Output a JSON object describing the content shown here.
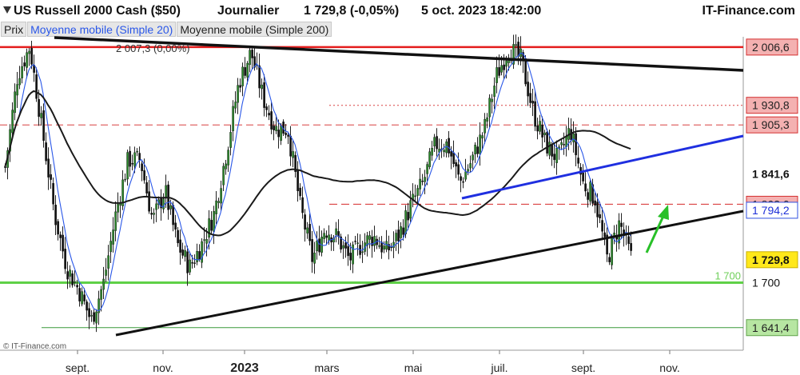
{
  "header": {
    "title": "US Russell 2000 Cash ($50)",
    "period": "Journalier",
    "quote": "1 729,8 (-0,05%)",
    "datetime": "5 oct. 2023 18:42:00",
    "brand": "IT-Finance.com"
  },
  "legend": {
    "price": "Prix",
    "ma20": "Moyenne mobile (Simple 20)",
    "ma200": "Moyenne mobile (Simple 200)"
  },
  "colors": {
    "ma20": "#2a57e8",
    "ma200": "#1a1a1a",
    "resistance_red": "#e41d1d",
    "dashed_red": "#d94040",
    "support_green": "#5fd047",
    "blue_trend": "#1f2fe0",
    "arrow_green": "#28c028"
  },
  "watermark": "© IT-Finance.com",
  "chart_data": {
    "type": "candlestick",
    "title": "US Russell 2000 Cash ($50)",
    "x_ticks": [
      "sept.",
      "nov.",
      "2023",
      "mars",
      "mai",
      "juil.",
      "sept.",
      "nov."
    ],
    "y_ticks": [
      "1 700"
    ],
    "ylim": [
      1612,
      2020
    ],
    "series": [
      {
        "name": "Prix",
        "values": [
          1850,
          1970,
          2007.3,
          1900,
          1790,
          1720,
          1690,
          1650,
          1700,
          1790,
          1860,
          1860,
          1780,
          1820,
          1750,
          1720,
          1750,
          1790,
          1870,
          1960,
          2000,
          1940,
          1900,
          1900,
          1800,
          1730,
          1770,
          1760,
          1730,
          1750,
          1760,
          1740,
          1760,
          1800,
          1830,
          1880,
          1880,
          1830,
          1860,
          1900,
          1970,
          2005,
          1990,
          1920,
          1880,
          1860,
          1900,
          1830,
          1810,
          1730,
          1778,
          1730
        ]
      },
      {
        "name": "Moyenne mobile (Simple 20)"
      },
      {
        "name": "Moyenne mobile (Simple 200)"
      }
    ],
    "price_labels": [
      {
        "text": "2 006,6",
        "value": 2006.6,
        "kind": "red"
      },
      {
        "text": "1 930,8",
        "value": 1930.8,
        "kind": "red"
      },
      {
        "text": "1 905,3",
        "value": 1905.3,
        "kind": "red"
      },
      {
        "text": "1 841,6",
        "value": 1841.6,
        "kind": "white"
      },
      {
        "text": "1 802,0",
        "value": 1802.0,
        "kind": "red"
      },
      {
        "text": "1 794,2",
        "value": 1794.2,
        "kind": "blue"
      },
      {
        "text": "1 729,8",
        "value": 1729.8,
        "kind": "yellow"
      },
      {
        "text": "1 700",
        "value": 1700,
        "kind": "plain"
      },
      {
        "text": "1 641,4",
        "value": 1641.4,
        "kind": "green"
      }
    ],
    "annotations": [
      {
        "text": "2 007,3 (0,00%)",
        "value": 2007.3
      },
      {
        "text": "1 700",
        "value": 1700
      }
    ]
  }
}
